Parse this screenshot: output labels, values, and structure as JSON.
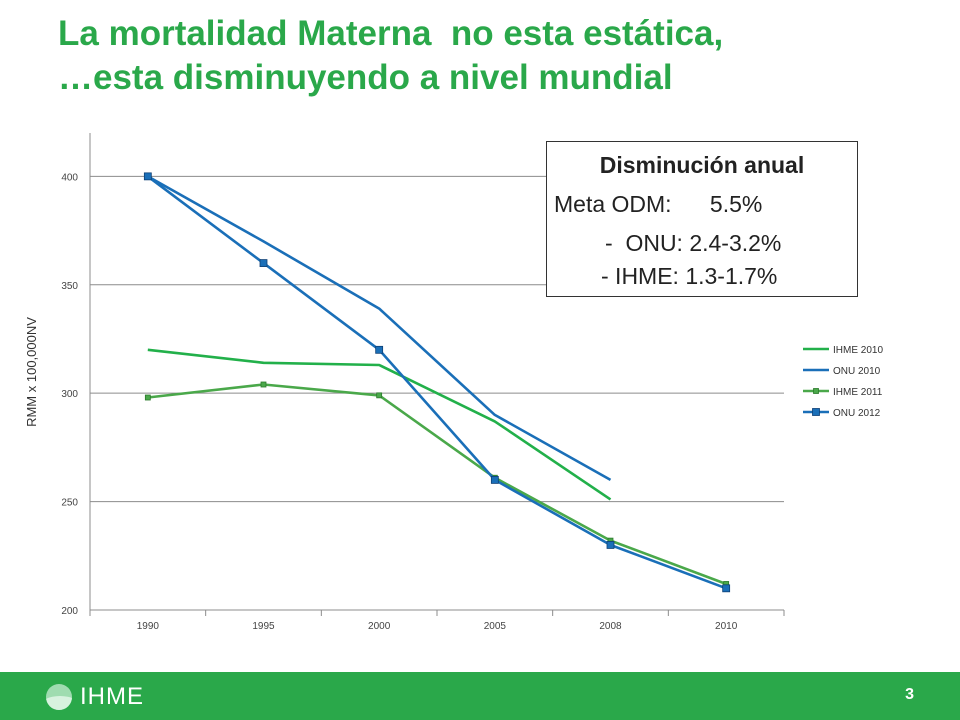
{
  "slide": {
    "title_line1": "La mortalidad Materna  no esta estática,",
    "title_line2": "…esta disminuyendo a nivel mundial",
    "page_number": "3",
    "logo_text": "IHME",
    "colors": {
      "green": "#2aa84a",
      "footer": "#2aa84a"
    }
  },
  "infobox": {
    "heading": "Disminución anual",
    "line1": "Meta ODM:      5.5%",
    "line2": "-  ONU: 2.4-3.2%",
    "line3": "- IHME: 1.3-1.7%"
  },
  "chart_data": {
    "type": "line",
    "ylabel": "RMM x 100,000NV",
    "xlabel": "",
    "categories": [
      "1990",
      "1995",
      "2000",
      "2005",
      "2008",
      "2010"
    ],
    "ylim": [
      200,
      420
    ],
    "yticks": [
      200,
      250,
      300,
      350,
      400
    ],
    "grid": true,
    "legend_position": "right",
    "series": [
      {
        "name": "IHME 2010",
        "color": "#22b04a",
        "marker": false,
        "values": [
          320,
          314,
          313,
          287,
          251,
          null
        ]
      },
      {
        "name": "ONU 2010",
        "color": "#1a6fb8",
        "marker": false,
        "values": [
          400,
          370,
          339,
          290,
          260,
          null
        ]
      },
      {
        "name": "IHME 2011",
        "color": "#4aa84a",
        "marker": true,
        "values": [
          298,
          304,
          299,
          261,
          232,
          212
        ]
      },
      {
        "name": "ONU 2012",
        "color": "#1a6fb8",
        "marker": true,
        "values": [
          400,
          360,
          320,
          260,
          230,
          210
        ]
      }
    ]
  }
}
